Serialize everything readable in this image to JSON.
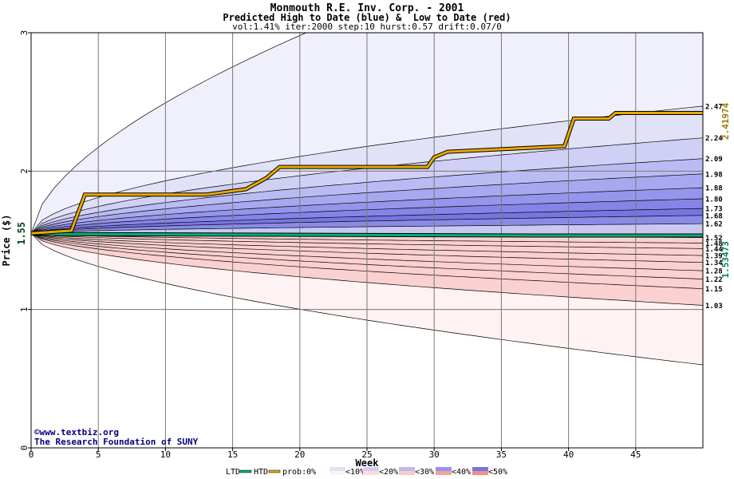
{
  "chart_data": {
    "type": "area",
    "title": "Monmouth R.E. Inv. Corp. - 2001",
    "subtitle": "Predicted High to Date (blue) &  Low to Date (red)",
    "params": "vol:1.41% iter:2000 step:10 hurst:0.57 drift:0.07/0",
    "xlabel": "Week",
    "ylabel": "Price ($)",
    "xlim": [
      0,
      50
    ],
    "ylim": [
      0,
      3
    ],
    "grid": true,
    "x_ticks": [
      0,
      5,
      10,
      15,
      20,
      25,
      30,
      35,
      40,
      45
    ],
    "y_ticks": [
      0,
      1,
      2,
      3
    ],
    "start_price": 1.55,
    "start_label": "1.55",
    "high_to_date": {
      "color": "#e8a800",
      "points": [
        [
          0,
          1.55
        ],
        [
          3,
          1.57
        ],
        [
          4,
          1.83
        ],
        [
          13,
          1.83
        ],
        [
          16,
          1.87
        ],
        [
          17.5,
          1.95
        ],
        [
          18.5,
          2.03
        ],
        [
          29.5,
          2.03
        ],
        [
          30,
          2.1
        ],
        [
          31,
          2.14
        ],
        [
          39.7,
          2.18
        ],
        [
          40.4,
          2.38
        ],
        [
          43,
          2.38
        ],
        [
          43.5,
          2.42
        ],
        [
          50,
          2.42
        ]
      ],
      "end_label": "2.41974"
    },
    "low_to_date": {
      "color": "#00b07a",
      "points": [
        [
          0,
          1.55
        ],
        [
          2,
          1.545
        ],
        [
          37,
          1.5347
        ],
        [
          50,
          1.5347
        ]
      ],
      "end_label": "1.53473"
    },
    "high_levels": [
      "2.47",
      "2.24",
      "2.09",
      "1.98",
      "1.88",
      "1.80",
      "1.73",
      "1.68",
      "1.62",
      "1.52"
    ],
    "low_levels": [
      "1.48",
      "1.44",
      "1.39",
      "1.34",
      "1.28",
      "1.22",
      "1.15",
      "1.03"
    ],
    "high_band_values": [
      2.47,
      2.24,
      2.09,
      1.98,
      1.88,
      1.8,
      1.73,
      1.68,
      1.62,
      1.52
    ],
    "low_band_values": [
      1.48,
      1.44,
      1.39,
      1.34,
      1.28,
      1.22,
      1.15,
      1.03
    ],
    "outer_envelope": {
      "upper_end": 3.0,
      "upper_reaches_top_at_week": 20,
      "lower_end": 0.6
    },
    "legend": {
      "ltd": "LTD",
      "htd": "HTD",
      "prob_items": [
        "prob:0%",
        "<10%",
        "<20%",
        "<30%",
        "<40%",
        "<50%"
      ]
    },
    "credit": {
      "line1": "©www.textbiz.org",
      "line2": "The Research Foundation of SUNY"
    }
  },
  "colors": {
    "htd_line": "#e8a800",
    "ltd_line": "#00b07a",
    "grid": "#777777",
    "credit": "#000080",
    "high_axis_label": "#9b7a00",
    "low_axis_label": "#008060"
  }
}
